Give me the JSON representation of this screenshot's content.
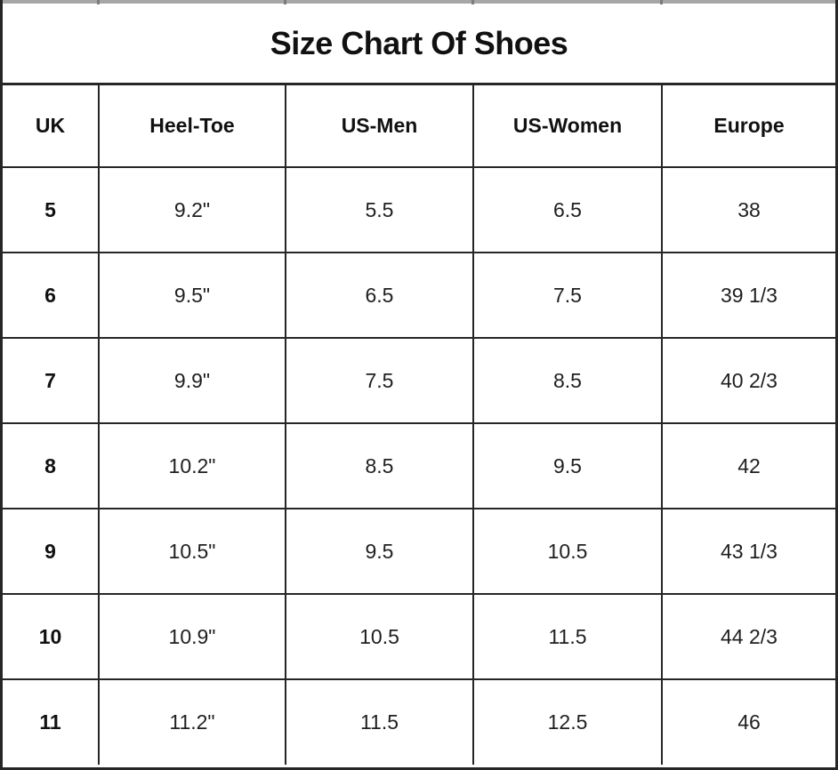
{
  "chart_data": {
    "type": "table",
    "title": "Size Chart Of Shoes",
    "columns": [
      "UK",
      "Heel-Toe",
      "US-Men",
      "US-Women",
      "Europe"
    ],
    "rows": [
      [
        "5",
        "9.2\"",
        "5.5",
        "6.5",
        "38"
      ],
      [
        "6",
        "9.5\"",
        "6.5",
        "7.5",
        "39 1/3"
      ],
      [
        "7",
        "9.9\"",
        "7.5",
        "8.5",
        "40 2/3"
      ],
      [
        "8",
        "10.2\"",
        "8.5",
        "9.5",
        "42"
      ],
      [
        "9",
        "10.5\"",
        "9.5",
        "10.5",
        "43 1/3"
      ],
      [
        "10",
        "10.9\"",
        "10.5",
        "11.5",
        "44 2/3"
      ],
      [
        "11",
        "11.2\"",
        "11.5",
        "12.5",
        "46"
      ]
    ],
    "layout": {
      "grid": "on",
      "header_bold": true,
      "first_column_bold": true
    }
  },
  "colors": {
    "border": "#262626",
    "text": "#1a1a1a",
    "background": "#ffffff",
    "top_strip": "#a6a6a6"
  }
}
